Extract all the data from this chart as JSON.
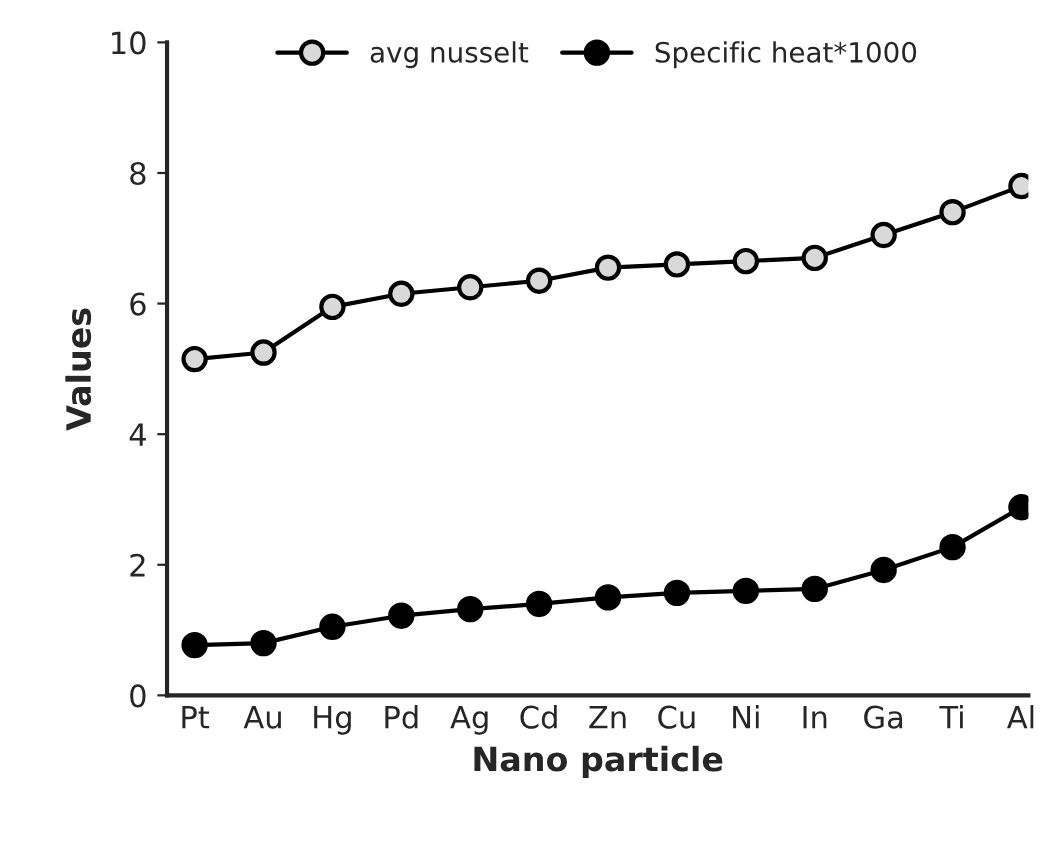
{
  "chart_data": {
    "type": "line",
    "xlabel": "Nano particle",
    "ylabel": "Values",
    "categories": [
      "Pt",
      "Au",
      "Hg",
      "Pd",
      "Ag",
      "Cd",
      "Zn",
      "Cu",
      "Ni",
      "In",
      "Ga",
      "Ti",
      "Al"
    ],
    "series": [
      {
        "name": "avg nusselt",
        "color": "#d9d9d9",
        "values": [
          5.15,
          5.25,
          5.95,
          6.15,
          6.25,
          6.35,
          6.55,
          6.6,
          6.65,
          6.7,
          7.05,
          7.4,
          7.8
        ]
      },
      {
        "name": "Specific heat*1000",
        "color": "#000000",
        "values": [
          0.77,
          0.8,
          1.05,
          1.22,
          1.32,
          1.4,
          1.5,
          1.57,
          1.6,
          1.63,
          1.92,
          2.27,
          2.88
        ]
      }
    ],
    "ylim": [
      0,
      10
    ],
    "yticks": [
      0,
      2,
      4,
      6,
      8,
      10
    ],
    "grid": false,
    "legend": "top",
    "marker": "circle",
    "line_style": "solid"
  }
}
